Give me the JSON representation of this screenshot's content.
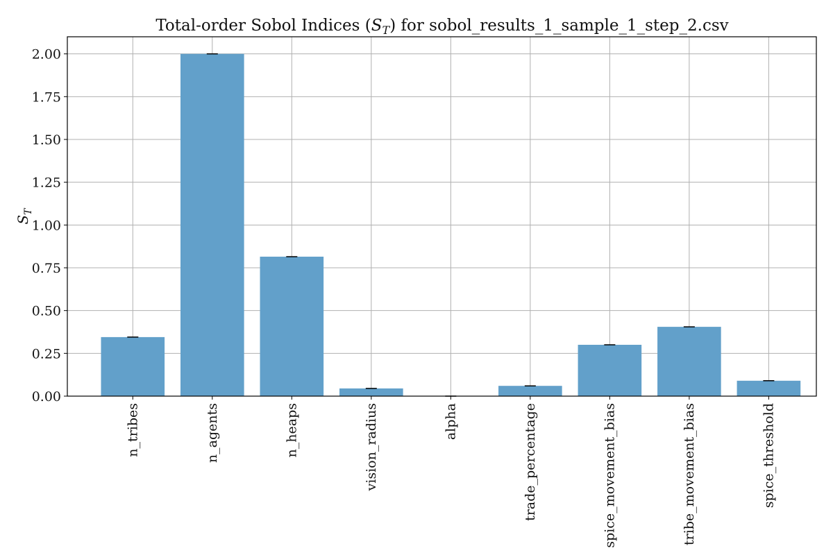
{
  "chart_data": {
    "type": "bar",
    "title": "Total-order Sobol Indices (S_T) for sobol_results_1_sample_1_step_2.csv",
    "xlabel": "",
    "ylabel": "S_T",
    "categories": [
      "n_tribes",
      "n_agents",
      "n_heaps",
      "vision_radius",
      "alpha",
      "trade_percentage",
      "spice_movement_bias",
      "tribe_movement_bias",
      "spice_threshold"
    ],
    "values": [
      0.345,
      2.0,
      0.815,
      0.045,
      0.0,
      0.06,
      0.3,
      0.405,
      0.09
    ],
    "error_bars": true,
    "ylim": [
      0,
      2.1
    ],
    "yticks": [
      0.0,
      0.25,
      0.5,
      0.75,
      1.0,
      1.25,
      1.5,
      1.75,
      2.0
    ],
    "ytick_labels": [
      "0.00",
      "0.25",
      "0.50",
      "0.75",
      "1.00",
      "1.25",
      "1.50",
      "1.75",
      "2.00"
    ],
    "grid": true,
    "bar_color": "#62a0ca"
  }
}
